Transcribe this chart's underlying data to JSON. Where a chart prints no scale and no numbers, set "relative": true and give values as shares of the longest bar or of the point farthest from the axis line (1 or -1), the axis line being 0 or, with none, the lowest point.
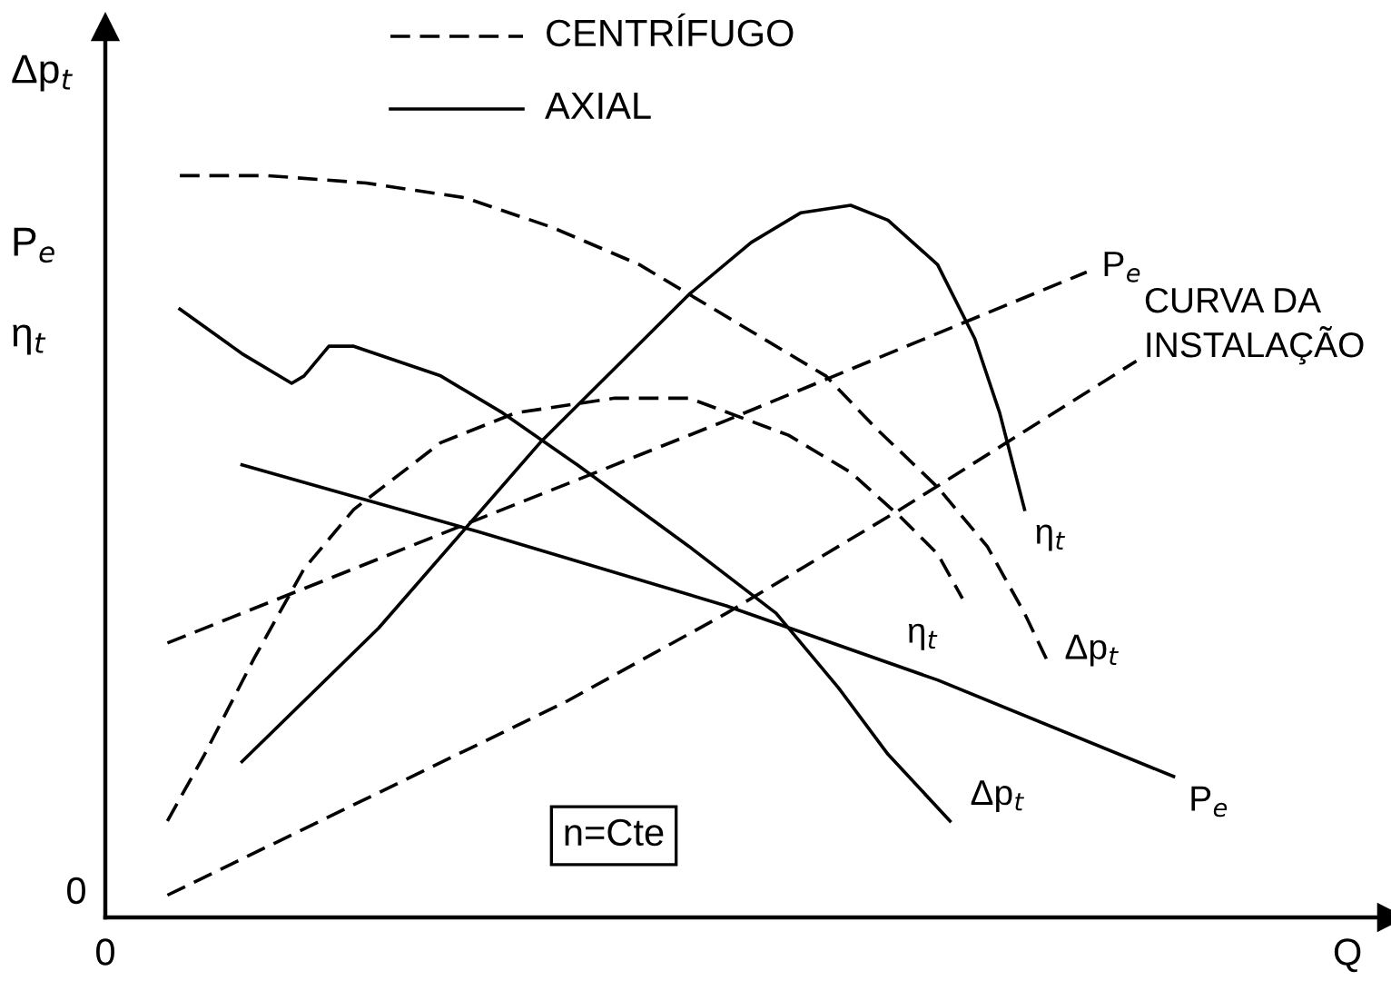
{
  "chart_data": {
    "type": "line",
    "relative": true,
    "ylabel": "Δp$_{t}$\nP$_{e}$\nη$_{t}$",
    "categories": [
      "0",
      null,
      null,
      null,
      null,
      null,
      null,
      null,
      null,
      null,
      null,
      null,
      null,
      null,
      null,
      null,
      null,
      null,
      null,
      null,
      null,
      null,
      null,
      null,
      null,
      null,
      null,
      null,
      null,
      null,
      null,
      null,
      null,
      null,
      null,
      null,
      null,
      null,
      null,
      null,
      null,
      null,
      null,
      null,
      null,
      null,
      null,
      null,
      null,
      null,
      null,
      null,
      null,
      null,
      null,
      null,
      null,
      null,
      null,
      null,
      null,
      null,
      null,
      null,
      null,
      null,
      null,
      null,
      null,
      null,
      null,
      null,
      null,
      null,
      null,
      null,
      null,
      null,
      null,
      null,
      null,
      null,
      null,
      null,
      null,
      null,
      null,
      null,
      null,
      null,
      null,
      null,
      null,
      null,
      null,
      null,
      null,
      null,
      null,
      null,
      "Q"
    ],
    "annotations": [
      "CENTRÍFUGO",
      "AXIAL",
      "n=Cte",
      "0"
    ],
    "marker": "none",
    "series": [
      {
        "name": "Δp$_{t}$",
        "color": "#000000",
        "line_style": "dashed",
        "values": [
          null,
          null,
          null,
          null,
          null,
          null,
          1.0,
          null,
          null,
          null,
          null,
          null,
          null,
          1.0,
          null,
          null,
          null,
          null,
          null,
          null,
          null,
          0.99,
          null,
          null,
          null,
          null,
          null,
          null,
          null,
          0.97,
          null,
          null,
          null,
          null,
          null,
          null,
          0.93,
          null,
          null,
          null,
          null,
          null,
          null,
          0.88,
          null,
          null,
          null,
          0.84,
          null,
          null,
          null,
          null,
          null,
          null,
          null,
          null,
          null,
          null,
          0.73,
          null,
          null,
          null,
          0.66,
          null,
          null,
          null,
          null,
          0.58,
          null,
          null,
          null,
          0.5,
          null,
          null,
          0.41,
          null,
          0.34,
          null,
          null,
          null,
          null,
          null,
          null,
          null,
          null,
          null,
          null,
          null,
          null,
          null,
          null,
          null,
          null,
          null,
          null,
          null,
          null,
          null,
          null,
          null,
          null
        ]
      },
      {
        "name": "η$_{t}$",
        "color": "#000000",
        "line_style": "dashed",
        "values": [
          null,
          null,
          null,
          null,
          null,
          0.13,
          null,
          null,
          0.22,
          null,
          null,
          null,
          0.35,
          null,
          null,
          null,
          0.47,
          null,
          null,
          null,
          0.55,
          null,
          null,
          null,
          null,
          null,
          null,
          0.64,
          null,
          null,
          null,
          null,
          null,
          0.68,
          null,
          null,
          null,
          null,
          null,
          null,
          null,
          0.7,
          null,
          null,
          null,
          null,
          null,
          0.7,
          null,
          null,
          null,
          null,
          null,
          null,
          null,
          0.65,
          null,
          null,
          null,
          null,
          0.6,
          null,
          null,
          null,
          0.54,
          null,
          null,
          0.49,
          null,
          0.43,
          null,
          null,
          null,
          null,
          null,
          null,
          null,
          null,
          null,
          null,
          null,
          null,
          null,
          null,
          null,
          null,
          null,
          null,
          null,
          null,
          null,
          null,
          null,
          null,
          null,
          null,
          null,
          null,
          null,
          null,
          null
        ]
      },
      {
        "name": "P$_{e}$",
        "color": "#000000",
        "line_style": "dashed",
        "values": [
          null,
          null,
          null,
          null,
          null,
          0.37,
          null,
          null,
          null,
          null,
          null,
          null,
          null,
          null,
          null,
          null,
          null,
          null,
          null,
          null,
          null,
          null,
          null,
          null,
          null,
          null,
          null,
          null,
          null,
          null,
          null,
          null,
          null,
          null,
          null,
          null,
          null,
          null,
          null,
          null,
          null,
          null,
          null,
          null,
          null,
          null,
          null,
          null,
          null,
          null,
          0.67,
          null,
          null,
          null,
          null,
          null,
          null,
          null,
          null,
          null,
          null,
          null,
          null,
          null,
          null,
          null,
          null,
          null,
          null,
          null,
          null,
          null,
          null,
          null,
          null,
          null,
          null,
          null,
          null,
          0.87,
          null,
          null,
          null,
          null,
          null,
          null,
          null,
          null,
          null,
          null,
          null,
          null,
          null,
          null,
          null,
          null,
          null,
          null,
          null,
          null,
          null
        ]
      },
      {
        "name": "CURVA DA\nINSTALAÇÃO",
        "color": "#000000",
        "line_style": "dashed",
        "values": [
          null,
          null,
          null,
          null,
          null,
          0.03,
          null,
          null,
          null,
          null,
          null,
          null,
          null,
          null,
          null,
          null,
          null,
          null,
          null,
          null,
          null,
          0.16,
          null,
          null,
          null,
          null,
          null,
          null,
          null,
          null,
          null,
          null,
          null,
          null,
          null,
          null,
          null,
          0.29,
          null,
          null,
          null,
          null,
          null,
          null,
          null,
          null,
          null,
          null,
          null,
          null,
          0.41,
          null,
          null,
          null,
          null,
          null,
          null,
          null,
          null,
          null,
          null,
          null,
          null,
          null,
          0.55,
          null,
          null,
          null,
          null,
          null,
          null,
          null,
          null,
          null,
          null,
          null,
          null,
          null,
          null,
          null,
          null,
          null,
          null,
          0.75,
          null,
          null,
          null,
          null,
          null,
          null,
          null,
          null,
          null,
          null,
          null,
          null,
          null,
          null,
          null,
          null,
          null
        ]
      },
      {
        "name": "Δp$_{t}$",
        "color": "#000000",
        "line_style": "solid",
        "values": [
          null,
          null,
          null,
          null,
          null,
          null,
          0.82,
          null,
          null,
          null,
          null,
          0.76,
          null,
          null,
          null,
          0.72,
          0.73,
          null,
          0.77,
          null,
          0.77,
          null,
          null,
          null,
          null,
          null,
          null,
          0.73,
          null,
          null,
          null,
          null,
          0.68,
          null,
          null,
          null,
          null,
          null,
          0.61,
          null,
          null,
          null,
          null,
          null,
          null,
          null,
          null,
          0.5,
          null,
          null,
          null,
          null,
          null,
          null,
          0.41,
          null,
          null,
          null,
          null,
          0.31,
          null,
          null,
          null,
          0.22,
          null,
          null,
          null,
          null,
          0.13,
          null,
          null,
          null,
          null,
          null,
          null,
          null,
          null,
          null,
          null,
          null,
          null,
          null,
          null,
          null,
          null,
          null,
          null,
          null,
          null,
          null,
          null,
          null,
          null,
          null,
          null,
          null,
          null,
          null,
          null,
          null,
          null
        ]
      },
      {
        "name": "η$_{t}$",
        "color": "#000000",
        "line_style": "solid",
        "values": [
          null,
          null,
          null,
          null,
          null,
          null,
          null,
          null,
          null,
          null,
          null,
          0.21,
          null,
          null,
          null,
          null,
          null,
          null,
          null,
          null,
          null,
          null,
          0.39,
          null,
          null,
          null,
          null,
          null,
          null,
          null,
          null,
          null,
          null,
          null,
          null,
          0.64,
          null,
          null,
          null,
          null,
          null,
          null,
          null,
          null,
          null,
          null,
          null,
          0.84,
          null,
          null,
          null,
          null,
          0.91,
          null,
          null,
          null,
          0.95,
          null,
          null,
          null,
          0.96,
          null,
          null,
          0.94,
          null,
          null,
          null,
          0.88,
          null,
          null,
          0.78,
          null,
          0.68,
          null,
          0.55,
          null,
          null,
          null,
          null,
          null,
          null,
          null,
          null,
          null,
          null,
          null,
          null,
          null,
          null,
          null,
          null,
          null,
          null,
          null,
          null,
          null,
          null,
          null,
          null,
          null,
          null
        ]
      },
      {
        "name": "P$_{e}$",
        "color": "#000000",
        "line_style": "solid",
        "values": [
          null,
          null,
          null,
          null,
          null,
          null,
          null,
          null,
          null,
          null,
          null,
          0.61,
          null,
          null,
          null,
          null,
          null,
          null,
          null,
          null,
          null,
          null,
          null,
          null,
          null,
          null,
          null,
          null,
          null,
          null,
          0.52,
          null,
          null,
          null,
          null,
          null,
          null,
          null,
          null,
          null,
          null,
          null,
          null,
          null,
          null,
          null,
          null,
          null,
          null,
          null,
          0.42,
          null,
          null,
          null,
          null,
          null,
          null,
          null,
          null,
          null,
          null,
          null,
          null,
          null,
          null,
          null,
          null,
          0.32,
          null,
          null,
          null,
          null,
          null,
          null,
          null,
          null,
          null,
          null,
          null,
          null,
          null,
          null,
          null,
          null,
          null,
          null,
          0.19,
          null,
          null,
          null,
          null,
          null,
          null,
          null,
          null,
          null,
          null,
          null,
          null,
          null,
          null
        ]
      }
    ]
  }
}
